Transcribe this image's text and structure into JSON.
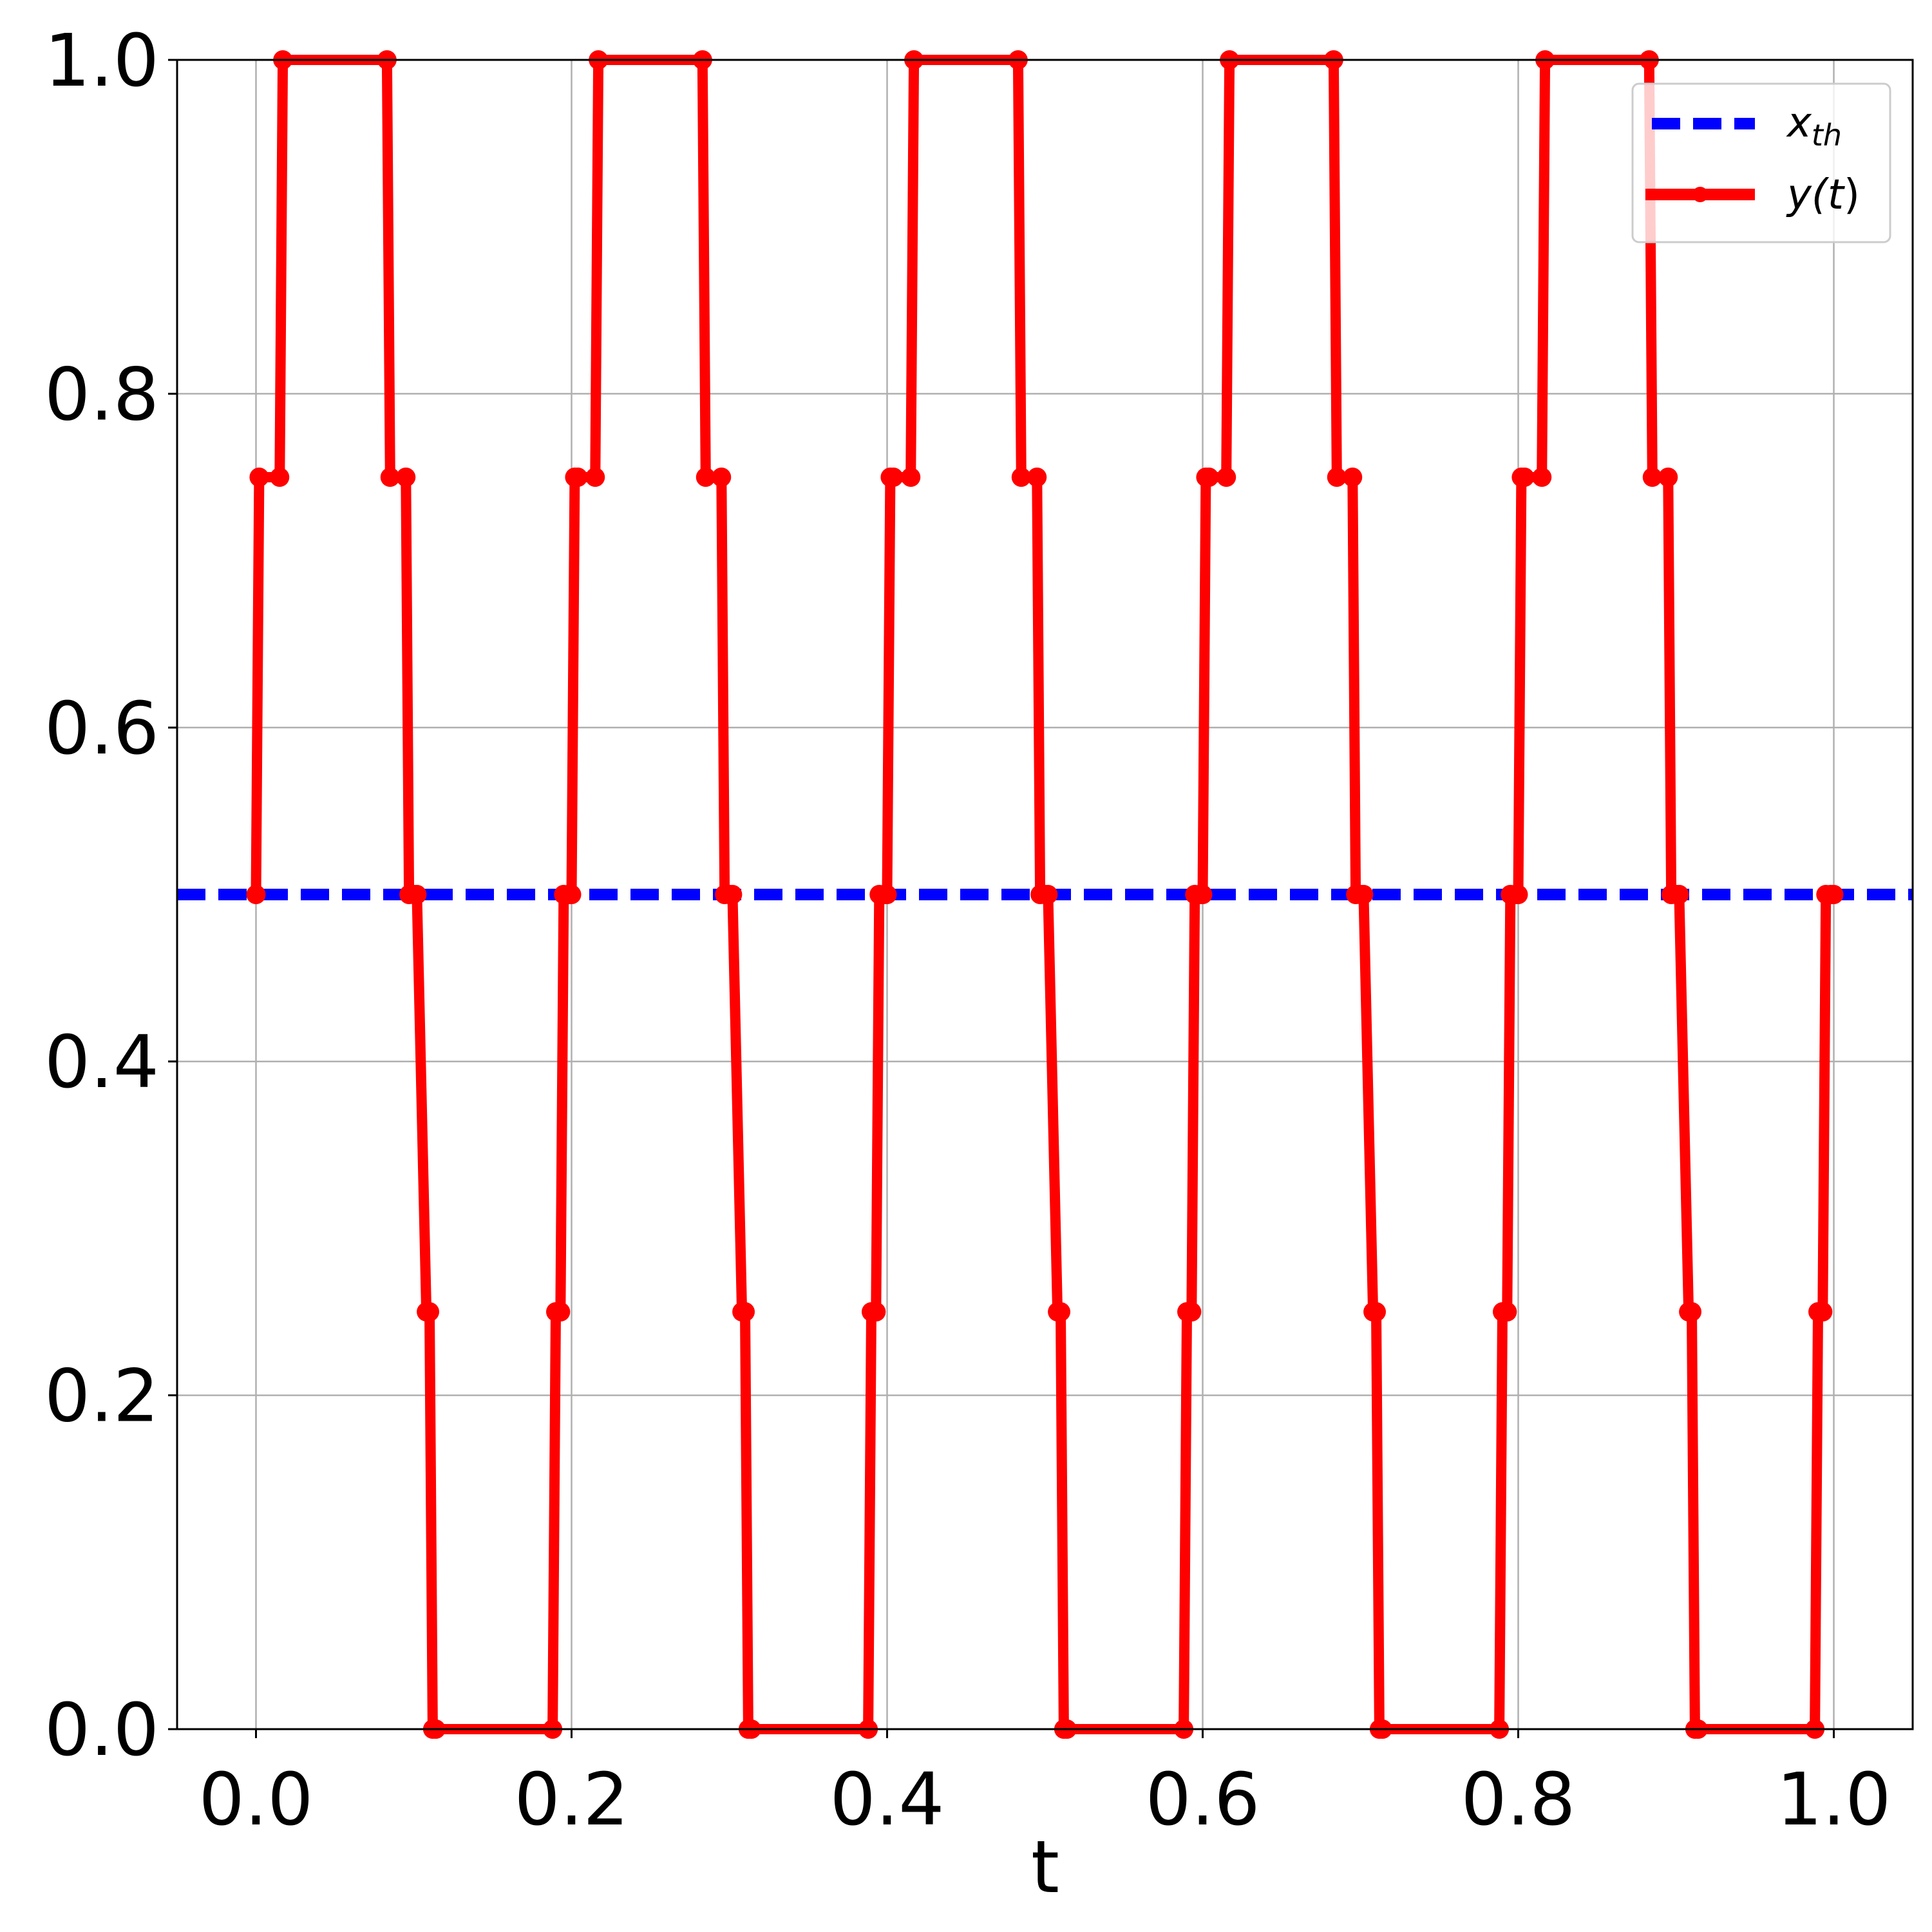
{
  "chart_data": {
    "type": "line",
    "title": "",
    "xlabel": "t",
    "ylabel": "",
    "xlim": [
      -0.05,
      1.05
    ],
    "ylim": [
      0.0,
      1.0
    ],
    "grid": true,
    "legend_position": "top-right",
    "xticks": [
      "0.0",
      "0.2",
      "0.4",
      "0.6",
      "0.8",
      "1.0"
    ],
    "yticks": [
      "0.0",
      "0.2",
      "0.4",
      "0.6",
      "0.8",
      "1.0"
    ],
    "threshold": {
      "label": "x_th",
      "label_base": "x",
      "label_sub": "th",
      "value": 0.5,
      "color": "#0000ff",
      "style": "dashed"
    },
    "series": [
      {
        "name": "y(t)",
        "label_pre": "y(",
        "label_var": "t",
        "label_post": ")",
        "color": "#ff0000",
        "marker": "circle",
        "x": [
          0.0,
          0.002,
          0.015,
          0.017,
          0.083,
          0.085,
          0.095,
          0.097,
          0.1,
          0.102,
          0.108,
          0.11,
          0.112,
          0.114,
          0.188,
          0.19,
          0.193,
          0.195,
          0.198,
          0.2,
          0.202,
          0.204,
          0.215,
          0.217,
          0.283,
          0.285,
          0.295,
          0.297,
          0.3,
          0.302,
          0.308,
          0.31,
          0.312,
          0.314,
          0.388,
          0.39,
          0.393,
          0.395,
          0.398,
          0.4,
          0.402,
          0.404,
          0.415,
          0.417,
          0.483,
          0.485,
          0.495,
          0.497,
          0.5,
          0.502,
          0.508,
          0.51,
          0.512,
          0.514,
          0.588,
          0.59,
          0.593,
          0.595,
          0.598,
          0.6,
          0.602,
          0.604,
          0.615,
          0.617,
          0.683,
          0.685,
          0.695,
          0.697,
          0.7,
          0.702,
          0.708,
          0.71,
          0.712,
          0.714,
          0.788,
          0.79,
          0.793,
          0.795,
          0.798,
          0.8,
          0.802,
          0.804,
          0.815,
          0.817,
          0.883,
          0.885,
          0.895,
          0.897,
          0.9,
          0.902,
          0.908,
          0.91,
          0.912,
          0.914,
          0.988,
          0.99,
          0.993,
          0.995,
          0.998,
          1.0
        ],
        "y": [
          0.5,
          0.75,
          0.75,
          1.0,
          1.0,
          0.75,
          0.75,
          0.5,
          0.5,
          0.5,
          0.25,
          0.25,
          0.0,
          0.0,
          0.0,
          0.25,
          0.25,
          0.5,
          0.5,
          0.5,
          0.75,
          0.75,
          0.75,
          1.0,
          1.0,
          0.75,
          0.75,
          0.5,
          0.5,
          0.5,
          0.25,
          0.25,
          0.0,
          0.0,
          0.0,
          0.25,
          0.25,
          0.5,
          0.5,
          0.5,
          0.75,
          0.75,
          0.75,
          1.0,
          1.0,
          0.75,
          0.75,
          0.5,
          0.5,
          0.5,
          0.25,
          0.25,
          0.0,
          0.0,
          0.0,
          0.25,
          0.25,
          0.5,
          0.5,
          0.5,
          0.75,
          0.75,
          0.75,
          1.0,
          1.0,
          0.75,
          0.75,
          0.5,
          0.5,
          0.5,
          0.25,
          0.25,
          0.0,
          0.0,
          0.0,
          0.25,
          0.25,
          0.5,
          0.5,
          0.5,
          0.75,
          0.75,
          0.75,
          1.0,
          1.0,
          0.75,
          0.75,
          0.5,
          0.5,
          0.5,
          0.25,
          0.25,
          0.0,
          0.0,
          0.0,
          0.25,
          0.25,
          0.5,
          0.5,
          0.5
        ]
      }
    ]
  }
}
